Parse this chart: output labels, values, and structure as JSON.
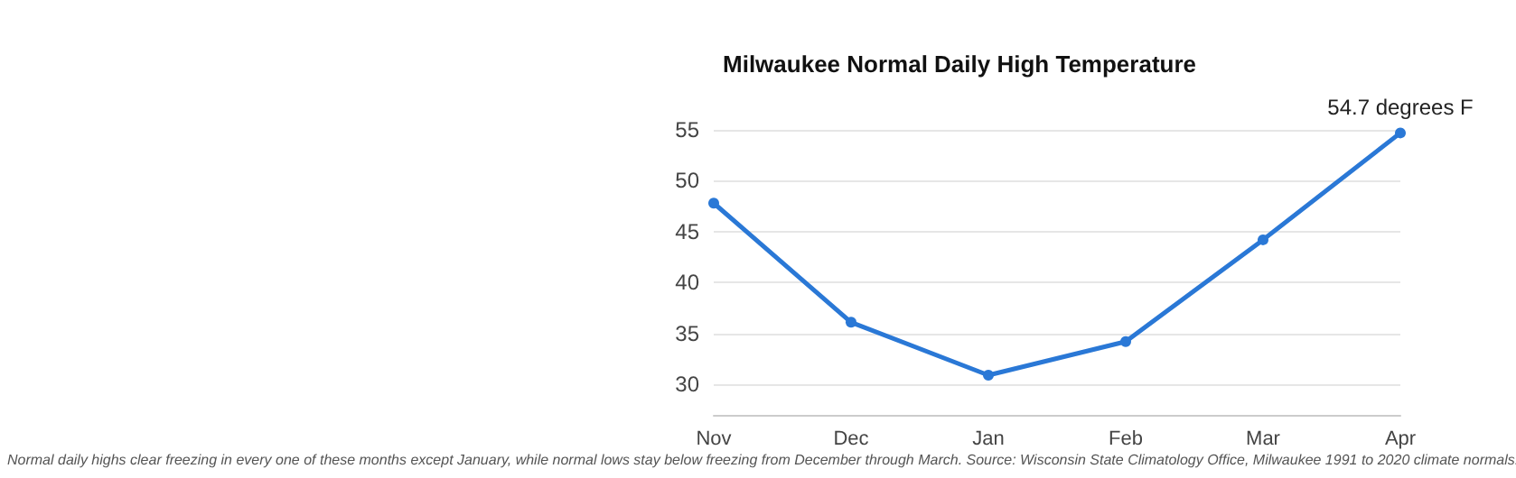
{
  "chart_data": {
    "type": "line",
    "title": "Milwaukee Normal Daily High Temperature",
    "categories": [
      "Nov",
      "Dec",
      "Jan",
      "Feb",
      "Mar",
      "Apr"
    ],
    "series": [
      {
        "color": "#2a78d6",
        "values": [
          47.8,
          36.1,
          30.9,
          34.2,
          44.2,
          54.7
        ],
        "value_labels": [
          null,
          null,
          null,
          null,
          null,
          "54.7 degrees F"
        ]
      }
    ],
    "ylim": [
      27,
      55
    ],
    "yticks": [
      30,
      35,
      40,
      45,
      50,
      55
    ],
    "grid": "y",
    "marker": "circle",
    "line_style": "solid",
    "annotations": [
      "Normal daily highs clear freezing in every one of these months except January, while normal lows stay below freezing from December through March. Source: Wisconsin State Climatology Office, Milwaukee 1991 to 2020 climate normals."
    ]
  }
}
